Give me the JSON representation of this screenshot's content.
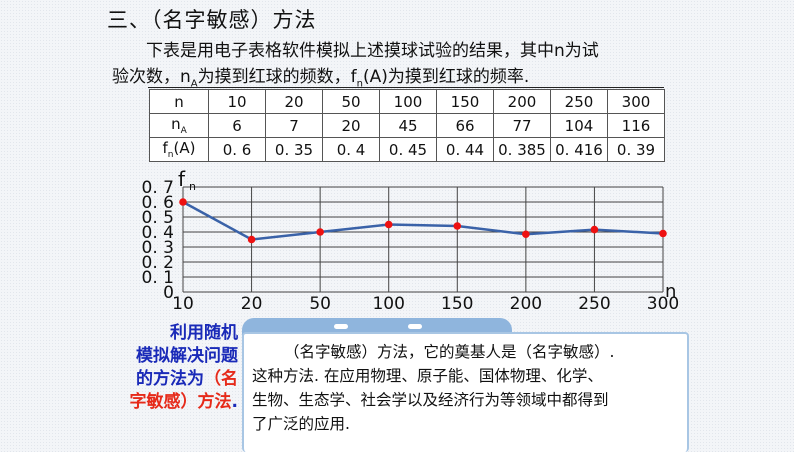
{
  "heading": "三、（名字敏感）方法",
  "intro": {
    "line1": "下表是用电子表格软件模拟上述摸球试验的结果，其中n为试",
    "line2_a": "验次数，n",
    "line2_sub1": "A",
    "line2_b": "为摸到红球的频数，f",
    "line2_sub2": "n",
    "line2_c": "(A)为摸到红球的频率."
  },
  "table": {
    "row_headers": [
      {
        "main": "n",
        "sub": ""
      },
      {
        "main": "n",
        "sub": "A"
      },
      {
        "main": "f",
        "sub": "n",
        "suffix": "(A)"
      }
    ],
    "n": [
      "10",
      "20",
      "50",
      "100",
      "150",
      "200",
      "250",
      "300"
    ],
    "nA": [
      "6",
      "7",
      "20",
      "45",
      "66",
      "77",
      "104",
      "116"
    ],
    "fnA": [
      "0. 6",
      "0. 35",
      "0. 4",
      "0. 45",
      "0. 44",
      "0. 385",
      "0. 416",
      "0. 39"
    ]
  },
  "chart_data": {
    "type": "line",
    "title": "",
    "xlabel": "n",
    "ylabel": "fn",
    "categories": [
      "10",
      "20",
      "50",
      "100",
      "150",
      "200",
      "250",
      "300"
    ],
    "values": [
      0.6,
      0.35,
      0.4,
      0.45,
      0.44,
      0.385,
      0.416,
      0.39
    ],
    "y_ticks": [
      "0",
      "0. 1",
      "0. 2",
      "0. 3",
      "0. 4",
      "0. 5",
      "0. 6",
      "0. 7"
    ],
    "ylim": [
      0,
      0.7
    ],
    "grid": true,
    "line_color": "#3a62a8",
    "marker_color": "#ee1111"
  },
  "left_text": {
    "blue1": "利用随机",
    "blue2": "模拟解决问题",
    "blue3": "的方法为",
    "red1": "（名",
    "red2": "字敏感）方法",
    "dot": "."
  },
  "note": {
    "line1": "（名字敏感）方法，它的奠基人是（名字敏感）.",
    "line2": "这种方法. 在应用物理、原子能、国体物理、化学、",
    "line3": "生物、生态学、社会学以及经济行为等领域中都得到",
    "line4": "了广泛的应用."
  }
}
